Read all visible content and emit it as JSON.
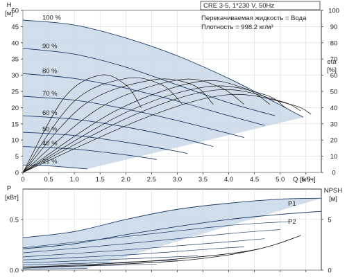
{
  "chart_data": [
    {
      "type": "line",
      "name": "QH",
      "info": [
        "CRE 3-5, 1*230 V, 50Hz",
        "Перекачиваемая жидкость = Вода",
        "Плотность = 998.2 кг/м³"
      ],
      "y_label": "H",
      "y_unit": "[м]",
      "y2_label": "eta",
      "y2_unit": "[%]",
      "x_label": "Q",
      "x_unit": "[м³/ч]",
      "xlim": [
        0,
        5.8
      ],
      "ylim": [
        0,
        50
      ],
      "y2lim": [
        0,
        100
      ],
      "x_ticks": [
        "0",
        "0.5",
        "1.0",
        "1.5",
        "2.0",
        "2.5",
        "3.0",
        "3.5",
        "4.0",
        "4.5",
        "5.0",
        "5.5"
      ],
      "x_tick_values": [
        0,
        0.5,
        1,
        1.5,
        2,
        2.5,
        3,
        3.5,
        4,
        4.5,
        5,
        5.5
      ],
      "y_ticks": [
        0,
        5,
        10,
        15,
        20,
        25,
        30,
        35,
        40,
        45,
        50
      ],
      "y2_ticks": [
        0,
        10,
        20,
        30,
        40,
        50,
        60,
        70,
        80,
        90,
        100
      ],
      "grid": true,
      "area_color": "#c8d7e6",
      "curve_color": "#1c3a66",
      "speed_curves": [
        {
          "label": "100 %",
          "x": [
            0,
            1.0,
            2.0,
            3.0,
            4.0,
            4.8,
            5.45
          ],
          "y": [
            47,
            45.5,
            41.5,
            36,
            29,
            22.5,
            17
          ]
        },
        {
          "label": "90 %",
          "x": [
            0,
            1.0,
            2.0,
            3.0,
            4.0,
            4.9
          ],
          "y": [
            38.3,
            36.5,
            32.5,
            27,
            21.5,
            17.5
          ]
        },
        {
          "label": "80 %",
          "x": [
            0,
            1.0,
            2.0,
            3.0,
            4.0,
            4.7
          ],
          "y": [
            30.5,
            29,
            26,
            22,
            17.5,
            14.5
          ]
        },
        {
          "label": "70 %",
          "x": [
            0,
            1.0,
            2.0,
            3.0,
            4.0,
            4.3
          ],
          "y": [
            23.5,
            22.3,
            19.6,
            16,
            12,
            10.8
          ]
        },
        {
          "label": "60 %",
          "x": [
            0,
            1.0,
            2.0,
            3.0,
            3.7
          ],
          "y": [
            17.5,
            16.4,
            14,
            10.8,
            8
          ]
        },
        {
          "label": "50 %",
          "x": [
            0,
            1.0,
            2.0,
            3.0,
            3.2
          ],
          "y": [
            12.4,
            11.4,
            9.3,
            6.5,
            5.8
          ]
        },
        {
          "label": "40 %",
          "x": [
            0,
            1.0,
            2.0,
            2.6
          ],
          "y": [
            8,
            7.2,
            5.4,
            4
          ]
        },
        {
          "label": "21 %",
          "x": [
            0,
            0.5,
            1.0,
            1.25
          ],
          "y": [
            2.3,
            2,
            1.4,
            1.1
          ]
        }
      ],
      "efficiency_curves": [
        {
          "x": [
            0,
            0.8,
            1.5,
            2.0,
            2.3
          ],
          "y": [
            0,
            23,
            30,
            27,
            20
          ]
        },
        {
          "x": [
            0,
            1.0,
            2.0,
            2.7,
            3.1
          ],
          "y": [
            0,
            22,
            29,
            27,
            21
          ]
        },
        {
          "x": [
            0,
            1.2,
            2.5,
            3.3,
            3.7
          ],
          "y": [
            0,
            21,
            28.5,
            27,
            21
          ]
        },
        {
          "x": [
            0,
            1.5,
            3.0,
            3.8,
            4.3
          ],
          "y": [
            0,
            20,
            28.5,
            26.5,
            21
          ]
        },
        {
          "x": [
            0,
            1.8,
            3.4,
            4.3,
            4.8
          ],
          "y": [
            0,
            19,
            28,
            26,
            21
          ]
        },
        {
          "x": [
            0,
            2.0,
            3.6,
            4.7,
            5.1
          ],
          "y": [
            0,
            18.5,
            26.5,
            24,
            20
          ]
        },
        {
          "x": [
            0,
            2.2,
            3.8,
            5.0,
            5.4
          ],
          "y": [
            0,
            18,
            25.5,
            22,
            19
          ]
        },
        {
          "x": [
            0,
            2.4,
            4.0,
            5.2,
            5.6
          ],
          "y": [
            0,
            17,
            24,
            21,
            18
          ]
        }
      ]
    },
    {
      "type": "line",
      "name": "P-NPSH",
      "y_label": "P",
      "y_unit": "[кВт]",
      "y2_label": "NPSH",
      "y2_unit": "[м]",
      "xlim": [
        0,
        5.8
      ],
      "ylim": [
        0,
        0.8
      ],
      "y2lim": [
        0,
        8
      ],
      "y_ticks": [
        "0.0",
        "0.5"
      ],
      "y_tick_values": [
        0,
        0.5
      ],
      "y2_ticks": [
        0,
        5
      ],
      "grid": true,
      "series": [
        {
          "name": "P1",
          "x": [
            0,
            1.0,
            2.0,
            3.0,
            4.0,
            5.0,
            5.8
          ],
          "y": [
            0.32,
            0.38,
            0.5,
            0.6,
            0.66,
            0.7,
            0.71
          ]
        },
        {
          "name": "P2",
          "x": [
            0,
            1.0,
            2.0,
            3.0,
            4.0,
            5.0,
            5.8
          ],
          "y": [
            0.21,
            0.26,
            0.35,
            0.43,
            0.5,
            0.55,
            0.58
          ]
        }
      ],
      "lower_curves": [
        {
          "x": [
            0,
            2.0,
            4.0,
            5.2
          ],
          "y": [
            0.22,
            0.33,
            0.44,
            0.48
          ]
        },
        {
          "x": [
            0,
            2.0,
            4.0,
            5.0
          ],
          "y": [
            0.17,
            0.26,
            0.36,
            0.4
          ]
        },
        {
          "x": [
            0,
            2.0,
            4.0,
            4.7
          ],
          "y": [
            0.13,
            0.2,
            0.28,
            0.31
          ]
        },
        {
          "x": [
            0,
            2.0,
            3.7,
            4.3
          ],
          "y": [
            0.1,
            0.15,
            0.21,
            0.23
          ]
        },
        {
          "x": [
            0,
            2.0,
            3.4
          ],
          "y": [
            0.07,
            0.11,
            0.14
          ]
        },
        {
          "x": [
            0,
            2.0,
            3.0
          ],
          "y": [
            0.05,
            0.08,
            0.1
          ]
        },
        {
          "x": [
            0,
            2.0,
            2.6
          ],
          "y": [
            0.03,
            0.05,
            0.06
          ]
        },
        {
          "x": [
            0,
            1.0,
            1.25
          ],
          "y": [
            0.01,
            0.015,
            0.018
          ]
        }
      ],
      "npsh_curves": [
        {
          "x": [
            0,
            1.5,
            3.0,
            4.5,
            5.4
          ],
          "y2": [
            0.3,
            0.6,
            1.1,
            2.0,
            3.4
          ]
        },
        {
          "x": [
            0,
            1.5,
            3.0,
            4.0,
            4.6
          ],
          "y2": [
            0.2,
            0.5,
            0.9,
            1.5,
            2.1
          ]
        }
      ]
    }
  ]
}
